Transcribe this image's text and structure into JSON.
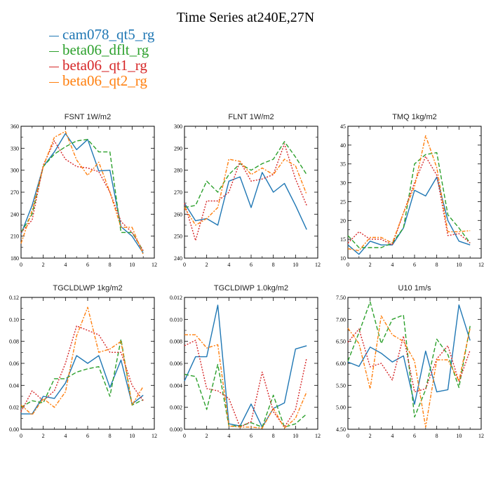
{
  "figure": {
    "title": "Time Series at240E,27N"
  },
  "legend": [
    {
      "name": "cam078_qt5_rg",
      "color": "#1f77b4"
    },
    {
      "name": "beta06_dflt_rg",
      "color": "#2ca02c"
    },
    {
      "name": "beta06_qt1_rg",
      "color": "#d62728"
    },
    {
      "name": "beta06_qt2_rg",
      "color": "#ff7f0e"
    }
  ],
  "chart_data": [
    {
      "type": "line",
      "title": "FSNT   1W/m2",
      "x": [
        0,
        1,
        2,
        3,
        4,
        5,
        6,
        7,
        8,
        9,
        10,
        11
      ],
      "xlim": [
        0,
        12
      ],
      "ylim": [
        180,
        360
      ],
      "yticks": [
        "180",
        "210",
        "240",
        "270",
        "300",
        "330",
        "360"
      ],
      "xticks": [
        "0",
        "2",
        "4",
        "6",
        "8",
        "10",
        "12"
      ],
      "series": [
        {
          "name": "cam078_qt5_rg",
          "values": [
            213,
            252,
            305,
            325,
            350,
            328,
            342,
            299,
            300,
            223,
            210,
            187
          ]
        },
        {
          "name": "beta06_dflt_rg",
          "values": [
            215,
            240,
            305,
            322,
            332,
            340,
            342,
            325,
            325,
            215,
            215,
            190
          ]
        },
        {
          "name": "beta06_qt1_rg",
          "values": [
            215,
            232,
            307,
            340,
            315,
            305,
            303,
            298,
            270,
            230,
            215,
            190
          ]
        },
        {
          "name": "beta06_qt2_rg",
          "values": [
            200,
            245,
            305,
            345,
            353,
            314,
            293,
            311,
            270,
            222,
            222,
            185
          ]
        }
      ]
    },
    {
      "type": "line",
      "title": "FLNT   1W/m2",
      "x": [
        0,
        1,
        2,
        3,
        4,
        5,
        6,
        7,
        8,
        9,
        10,
        11
      ],
      "xlim": [
        0,
        12
      ],
      "ylim": [
        240,
        300
      ],
      "yticks": [
        "240",
        "250",
        "260",
        "270",
        "280",
        "290",
        "300"
      ],
      "xticks": [
        "0",
        "2",
        "4",
        "6",
        "8",
        "10",
        "12"
      ],
      "series": [
        {
          "name": "cam078_qt5_rg",
          "values": [
            265,
            257,
            258,
            255,
            275,
            277,
            263,
            279,
            270,
            274,
            264,
            253
          ]
        },
        {
          "name": "beta06_dflt_rg",
          "values": [
            263,
            264,
            275,
            270,
            278,
            283,
            280,
            283,
            285,
            293,
            286,
            278
          ]
        },
        {
          "name": "beta06_qt1_rg",
          "values": [
            265,
            248,
            266,
            266,
            270,
            284,
            275,
            276,
            278,
            292,
            276,
            264
          ]
        },
        {
          "name": "beta06_qt2_rg",
          "values": [
            263,
            255,
            258,
            263,
            285,
            284,
            278,
            281,
            278,
            285,
            282,
            269
          ]
        }
      ]
    },
    {
      "type": "line",
      "title": "TMQ   1kg/m2",
      "x": [
        0,
        1,
        2,
        3,
        4,
        5,
        6,
        7,
        8,
        9,
        10,
        11
      ],
      "xlim": [
        0,
        12
      ],
      "ylim": [
        10,
        45
      ],
      "yticks": [
        "10",
        "15",
        "20",
        "25",
        "30",
        "35",
        "40",
        "45"
      ],
      "xticks": [
        "0",
        "2",
        "4",
        "6",
        "8",
        "10",
        "12"
      ],
      "series": [
        {
          "name": "cam078_qt5_rg",
          "values": [
            13.5,
            11,
            14.5,
            13.5,
            13.5,
            18,
            28,
            26.5,
            31.5,
            20,
            14.5,
            13.5
          ]
        },
        {
          "name": "beta06_dflt_rg",
          "values": [
            16,
            12.8,
            12.8,
            12.8,
            14,
            18,
            35,
            37.5,
            38,
            21.5,
            18,
            14
          ]
        },
        {
          "name": "beta06_qt1_rg",
          "values": [
            14,
            17,
            15,
            15,
            13.5,
            22,
            30,
            37,
            32,
            16,
            16.5,
            14
          ]
        },
        {
          "name": "beta06_qt2_rg",
          "values": [
            12.5,
            12,
            15.5,
            15.5,
            14,
            22,
            29,
            42.5,
            34,
            17,
            17,
            17.3
          ]
        }
      ]
    },
    {
      "type": "line",
      "title": "TGCLDLWP   1kg/m2",
      "x": [
        0,
        1,
        2,
        3,
        4,
        5,
        6,
        7,
        8,
        9,
        10,
        11
      ],
      "xlim": [
        0,
        12
      ],
      "ylim": [
        0.0,
        0.12
      ],
      "yticks": [
        "0.00",
        "0.02",
        "0.04",
        "0.06",
        "0.08",
        "0.10",
        "0.12"
      ],
      "xticks": [
        "0",
        "2",
        "4",
        "6",
        "8",
        "10",
        "12"
      ],
      "series": [
        {
          "name": "cam078_qt5_rg",
          "values": [
            0.014,
            0.014,
            0.03,
            0.028,
            0.042,
            0.067,
            0.06,
            0.067,
            0.038,
            0.063,
            0.023,
            0.031
          ]
        },
        {
          "name": "beta06_dflt_rg",
          "values": [
            0.02,
            0.026,
            0.024,
            0.046,
            0.046,
            0.052,
            0.055,
            0.057,
            0.03,
            0.082,
            0.022,
            0.027
          ]
        },
        {
          "name": "beta06_qt1_rg",
          "values": [
            0.016,
            0.035,
            0.026,
            0.035,
            0.06,
            0.094,
            0.09,
            0.086,
            0.07,
            0.07,
            0.04,
            0.026
          ]
        },
        {
          "name": "beta06_qt2_rg",
          "values": [
            0.022,
            0.013,
            0.028,
            0.02,
            0.034,
            0.085,
            0.111,
            0.07,
            0.073,
            0.08,
            0.022,
            0.039
          ]
        }
      ]
    },
    {
      "type": "line",
      "title": "TGCLDIWP   1.0kg/m2",
      "x": [
        0,
        1,
        2,
        3,
        4,
        5,
        6,
        7,
        8,
        9,
        10,
        11
      ],
      "xlim": [
        0,
        12
      ],
      "ylim": [
        0.0,
        0.012
      ],
      "yticks": [
        "0.000",
        "0.002",
        "0.004",
        "0.006",
        "0.008",
        "0.010",
        "0.012"
      ],
      "xticks": [
        "0",
        "2",
        "4",
        "6",
        "8",
        "10",
        "12"
      ],
      "series": [
        {
          "name": "cam078_qt5_rg",
          "values": [
            0.0044,
            0.0066,
            0.0066,
            0.0113,
            0.0005,
            0.0003,
            0.0023,
            0.0002,
            0.0019,
            0.0024,
            0.0073,
            0.0076
          ]
        },
        {
          "name": "beta06_dflt_rg",
          "values": [
            0.005,
            0.0048,
            0.0018,
            0.0059,
            0.0003,
            0.0003,
            0.0006,
            0.0002,
            0.0031,
            0.0002,
            0.0005,
            0.0014
          ]
        },
        {
          "name": "beta06_qt1_rg",
          "values": [
            0.0076,
            0.0081,
            0.0037,
            0.0035,
            0.0028,
            0.0002,
            0.0007,
            0.0052,
            0.0016,
            0.0002,
            0.0018,
            0.0065
          ]
        },
        {
          "name": "beta06_qt2_rg",
          "values": [
            0.0086,
            0.0086,
            0.0074,
            0.0077,
            0.0003,
            0.0002,
            0.0002,
            0.0001,
            0.0019,
            0.0001,
            0.001,
            0.0034
          ]
        }
      ]
    },
    {
      "type": "line",
      "title": "U10   1m/s",
      "x": [
        0,
        1,
        2,
        3,
        4,
        5,
        6,
        7,
        8,
        9,
        10,
        11
      ],
      "xlim": [
        0,
        12
      ],
      "ylim": [
        4.5,
        7.5
      ],
      "yticks": [
        "4.50",
        "5.00",
        "5.50",
        "6.00",
        "6.50",
        "7.00",
        "7.50"
      ],
      "xticks": [
        "0",
        "2",
        "4",
        "6",
        "8",
        "10",
        "12"
      ],
      "series": [
        {
          "name": "cam078_qt5_rg",
          "values": [
            6.03,
            5.93,
            6.37,
            6.23,
            6.03,
            6.17,
            5.07,
            6.28,
            5.35,
            5.4,
            7.33,
            6.52
          ]
        },
        {
          "name": "beta06_dflt_rg",
          "values": [
            6.05,
            6.7,
            7.4,
            6.45,
            7.0,
            7.1,
            4.78,
            5.4,
            6.55,
            6.2,
            5.45,
            6.85
          ]
        },
        {
          "name": "beta06_qt1_rg",
          "values": [
            6.48,
            6.78,
            5.92,
            6.0,
            5.62,
            6.62,
            5.35,
            5.42,
            6.1,
            6.4,
            5.58,
            6.3
          ]
        },
        {
          "name": "beta06_qt2_rg",
          "values": [
            6.8,
            6.45,
            5.42,
            7.08,
            6.65,
            6.5,
            6.05,
            4.55,
            6.08,
            6.08,
            5.6,
            6.8
          ]
        }
      ]
    }
  ]
}
